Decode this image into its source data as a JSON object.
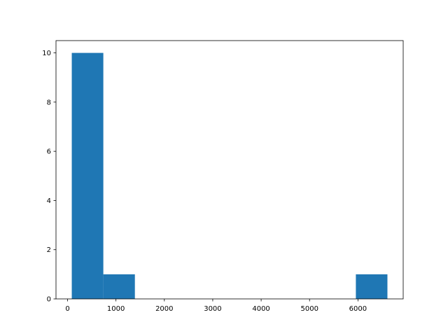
{
  "chart_data": {
    "type": "bar",
    "subtype": "histogram",
    "bin_edges": [
      87,
      739,
      1391,
      2044,
      2696,
      3348,
      4000,
      4652,
      5305,
      5957,
      6609
    ],
    "values": [
      10,
      1,
      0,
      0,
      0,
      0,
      0,
      0,
      0,
      1
    ],
    "title": "",
    "xlabel": "",
    "ylabel": "",
    "xlim": [
      -239,
      6935
    ],
    "ylim": [
      0,
      10.5
    ],
    "xticks": [
      0,
      1000,
      2000,
      3000,
      4000,
      5000,
      6000
    ],
    "xtick_labels": [
      "0",
      "1000",
      "2000",
      "3000",
      "4000",
      "5000",
      "6000"
    ],
    "yticks": [
      0,
      2,
      4,
      6,
      8,
      10
    ],
    "ytick_labels": [
      "0",
      "2",
      "4",
      "6",
      "8",
      "10"
    ],
    "grid": false,
    "bar_color": "#1f77b4"
  }
}
